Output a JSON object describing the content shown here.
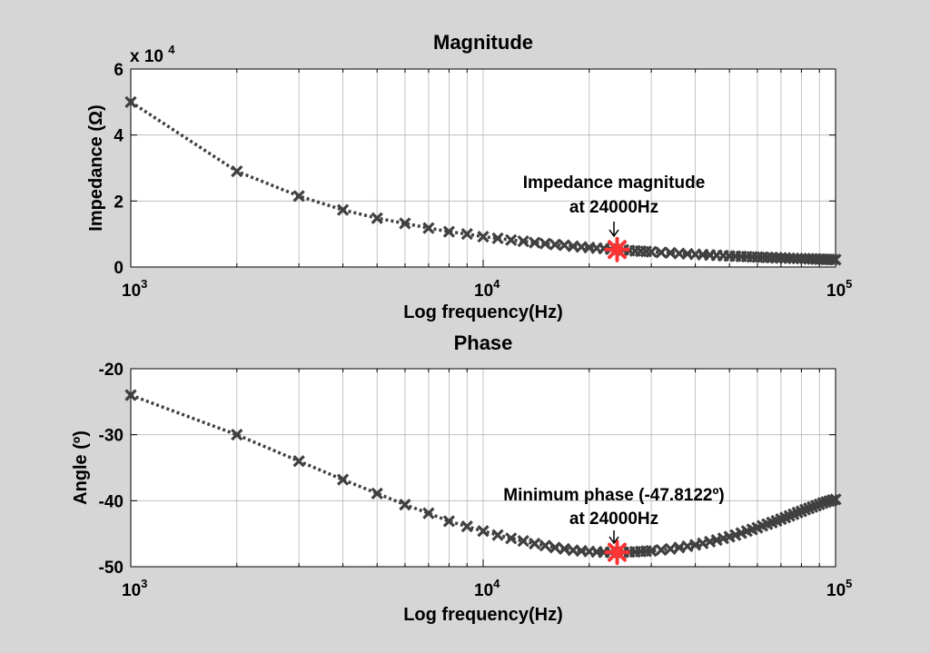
{
  "figure": {
    "background": "#d6d6d6",
    "axes_background": "#ffffff"
  },
  "chart_data": [
    {
      "type": "line",
      "title": "Magnitude",
      "xlabel": "Log frequency(Hz)",
      "ylabel": "Impedance (Ω)",
      "xscale": "log",
      "xlim": [
        1000,
        100000
      ],
      "ylim": [
        0,
        60000
      ],
      "y_exponent_label": "x 10",
      "y_exponent": "4",
      "x_ticks": [
        {
          "base": "10",
          "exp": "3"
        },
        {
          "base": "10",
          "exp": "4"
        },
        {
          "base": "10",
          "exp": "5"
        }
      ],
      "y_ticks": [
        "0",
        "2",
        "4",
        "6"
      ],
      "y_tick_values": [
        0,
        20000,
        40000,
        60000
      ],
      "grid": true,
      "series_color": "#404040",
      "marker": "x",
      "series": [
        {
          "x": [
            1000,
            2000,
            3000,
            4000,
            5000,
            6000,
            7000,
            8000,
            9000,
            10000,
            11000,
            12000,
            13000,
            14000,
            15000,
            16000,
            17000,
            18000,
            19000,
            20000,
            21000,
            22000,
            23000,
            24000,
            25000,
            26000,
            27000,
            28000,
            29000,
            30000,
            32000,
            34000,
            36000,
            38000,
            40000,
            42000,
            44000,
            46000,
            48000,
            50000,
            52000,
            54000,
            56000,
            58000,
            60000,
            62000,
            64000,
            66000,
            68000,
            70000,
            72000,
            74000,
            76000,
            78000,
            80000,
            82000,
            84000,
            86000,
            88000,
            90000,
            92000,
            94000,
            96000,
            98000,
            100000
          ],
          "values": [
            50000,
            29000,
            21500,
            17300,
            14800,
            13200,
            11800,
            10700,
            10000,
            9200,
            8700,
            8200,
            7800,
            7400,
            7100,
            6800,
            6600,
            6300,
            6100,
            5900,
            5700,
            5600,
            5400,
            5300,
            5200,
            5000,
            4900,
            4800,
            4700,
            4600,
            4400,
            4300,
            4100,
            4000,
            3850,
            3750,
            3650,
            3550,
            3450,
            3350,
            3280,
            3200,
            3130,
            3070,
            3000,
            2950,
            2900,
            2850,
            2800,
            2750,
            2700,
            2660,
            2620,
            2580,
            2540,
            2500,
            2470,
            2440,
            2410,
            2380,
            2350,
            2320,
            2290,
            2270,
            2250
          ]
        }
      ],
      "highlight": {
        "x": 24000,
        "y": 5300,
        "color": "#ff3333"
      },
      "annotation": {
        "line1": "Impedance magnitude",
        "line2": "at 24000Hz"
      }
    },
    {
      "type": "line",
      "title": "Phase",
      "xlabel": "Log frequency(Hz)",
      "ylabel": "Angle (º)",
      "xscale": "log",
      "xlim": [
        1000,
        100000
      ],
      "ylim": [
        -50,
        -20
      ],
      "x_ticks": [
        {
          "base": "10",
          "exp": "3"
        },
        {
          "base": "10",
          "exp": "4"
        },
        {
          "base": "10",
          "exp": "5"
        }
      ],
      "y_ticks": [
        "-50",
        "-40",
        "-30",
        "-20"
      ],
      "y_tick_values": [
        -50,
        -40,
        -30,
        -20
      ],
      "grid": true,
      "series_color": "#404040",
      "marker": "x",
      "series": [
        {
          "x": [
            1000,
            2000,
            3000,
            4000,
            5000,
            6000,
            7000,
            8000,
            9000,
            10000,
            11000,
            12000,
            13000,
            14000,
            15000,
            16000,
            17000,
            18000,
            19000,
            20000,
            21000,
            22000,
            23000,
            24000,
            25000,
            26000,
            27000,
            28000,
            29000,
            30000,
            32000,
            34000,
            36000,
            38000,
            40000,
            42000,
            44000,
            46000,
            48000,
            50000,
            52000,
            54000,
            56000,
            58000,
            60000,
            62000,
            64000,
            66000,
            68000,
            70000,
            72000,
            74000,
            76000,
            78000,
            80000,
            82000,
            84000,
            86000,
            88000,
            90000,
            92000,
            94000,
            96000,
            98000,
            100000
          ],
          "values": [
            -24.0,
            -30.0,
            -34.0,
            -36.8,
            -38.9,
            -40.6,
            -41.9,
            -43.1,
            -43.9,
            -44.6,
            -45.2,
            -45.7,
            -46.1,
            -46.5,
            -46.8,
            -47.1,
            -47.3,
            -47.5,
            -47.6,
            -47.7,
            -47.75,
            -47.8,
            -47.81,
            -47.8122,
            -47.8,
            -47.78,
            -47.75,
            -47.7,
            -47.65,
            -47.6,
            -47.45,
            -47.3,
            -47.1,
            -46.9,
            -46.7,
            -46.45,
            -46.2,
            -45.95,
            -45.7,
            -45.45,
            -45.2,
            -44.9,
            -44.6,
            -44.35,
            -44.1,
            -43.8,
            -43.55,
            -43.3,
            -43.05,
            -42.8,
            -42.55,
            -42.3,
            -42.05,
            -41.8,
            -41.6,
            -41.35,
            -41.15,
            -40.95,
            -40.75,
            -40.55,
            -40.35,
            -40.2,
            -40.05,
            -39.9,
            -39.8
          ]
        }
      ],
      "highlight": {
        "x": 24000,
        "y": -47.8122,
        "color": "#ff3333"
      },
      "annotation": {
        "line1": "Minimum phase (-47.8122º)",
        "line2": "at 24000Hz"
      }
    }
  ]
}
